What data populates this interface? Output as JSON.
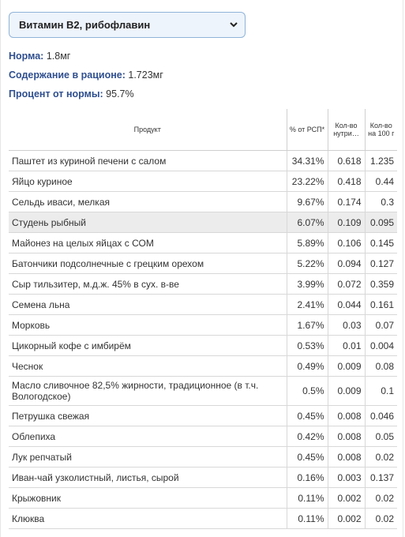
{
  "select": {
    "value": "Витамин B2, рибофлавин"
  },
  "info": {
    "norm_label": "Норма:",
    "norm_value": " 1.8мг",
    "content_label": "Содержание в рационе:",
    "content_value": " 1.723мг",
    "percent_label": "Процент от нормы:",
    "percent_value": " 95.7%"
  },
  "table": {
    "headers": {
      "product": "Продукт",
      "pct": "% от РСП*",
      "qty": "Кол-во нутри…",
      "per100": "Кол-во на 100 г"
    },
    "rows": [
      {
        "name": "Паштет из куриной печени с салом",
        "pct": "34.31%",
        "qty": "0.618",
        "per100": "1.235"
      },
      {
        "name": "Яйцо куриное",
        "pct": "23.22%",
        "qty": "0.418",
        "per100": "0.44"
      },
      {
        "name": "Сельдь иваси, мелкая",
        "pct": "9.67%",
        "qty": "0.174",
        "per100": "0.3"
      },
      {
        "name": "Студень рыбный",
        "pct": "6.07%",
        "qty": "0.109",
        "per100": "0.095"
      },
      {
        "name": "Майонез на целых яйцах с СОМ",
        "pct": "5.89%",
        "qty": "0.106",
        "per100": "0.145"
      },
      {
        "name": "Батончики подсолнечные с грецким орехом",
        "pct": "5.22%",
        "qty": "0.094",
        "per100": "0.127"
      },
      {
        "name": "Сыр тильзитер, м.д.ж. 45% в сух. в-ве",
        "pct": "3.99%",
        "qty": "0.072",
        "per100": "0.359"
      },
      {
        "name": "Семена льна",
        "pct": "2.41%",
        "qty": "0.044",
        "per100": "0.161"
      },
      {
        "name": "Морковь",
        "pct": "1.67%",
        "qty": "0.03",
        "per100": "0.07"
      },
      {
        "name": "Цикорный кофе с имбирём",
        "pct": "0.53%",
        "qty": "0.01",
        "per100": "0.004"
      },
      {
        "name": "Чеснок",
        "pct": "0.49%",
        "qty": "0.009",
        "per100": "0.08"
      },
      {
        "name": "Масло сливочное 82,5% жирности, традиционное (в т.ч. Вологодское)",
        "pct": "0.5%",
        "qty": "0.009",
        "per100": "0.1"
      },
      {
        "name": "Петрушка свежая",
        "pct": "0.45%",
        "qty": "0.008",
        "per100": "0.046"
      },
      {
        "name": "Облепиха",
        "pct": "0.42%",
        "qty": "0.008",
        "per100": "0.05"
      },
      {
        "name": "Лук репчатый",
        "pct": "0.45%",
        "qty": "0.008",
        "per100": "0.02"
      },
      {
        "name": "Иван-чай узколистный, листья, сырой",
        "pct": "0.16%",
        "qty": "0.003",
        "per100": "0.137"
      },
      {
        "name": "Крыжовник",
        "pct": "0.11%",
        "qty": "0.002",
        "per100": "0.02"
      },
      {
        "name": "Клюква",
        "pct": "0.11%",
        "qty": "0.002",
        "per100": "0.02"
      }
    ]
  },
  "colors": {
    "label": "#2f4f8f",
    "select_bg": "#eef4fb",
    "select_border": "#8fb3d9",
    "highlight_row": "#ececec"
  },
  "icons": {
    "select_chevron": "chevron-down-icon"
  }
}
